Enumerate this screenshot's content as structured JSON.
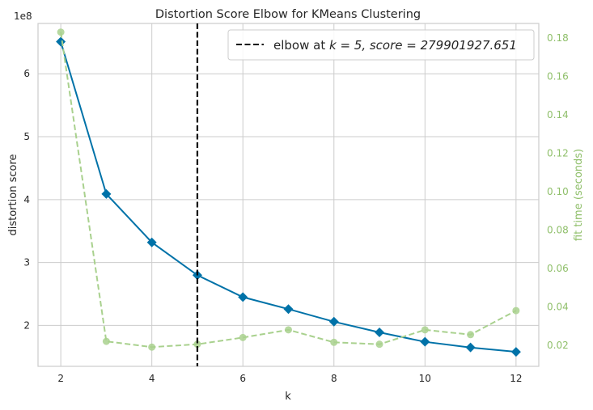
{
  "chart_data": {
    "type": "line",
    "title": "Distortion Score Elbow for KMeans Clustering",
    "xlabel": "k",
    "ylabel": "distortion score",
    "y2label": "fit time (seconds)",
    "offset_text": "1e8",
    "xlim": [
      1.5,
      12.5
    ],
    "ylim": [
      135000000.0,
      680000000.0
    ],
    "y2lim": [
      0.009,
      0.1875
    ],
    "xticks": [
      "2",
      "4",
      "6",
      "8",
      "10",
      "12"
    ],
    "yticks": [
      "2",
      "3",
      "4",
      "5",
      "6"
    ],
    "y2ticks": [
      "0.02",
      "0.04",
      "0.06",
      "0.08",
      "0.10",
      "0.12",
      "0.14",
      "0.16",
      "0.18"
    ],
    "grid": true,
    "legend_position": "top-right",
    "legend_label_prefix": "elbow at ",
    "legend_label_math": "k = 5, score = 279901927.651",
    "elbow": {
      "k": 5,
      "score": 279901927.651
    },
    "series": [
      {
        "name": "distortion score",
        "axis": "left",
        "color": "#0072a8",
        "style": "solid",
        "marker": "diamond",
        "x": [
          2,
          3,
          4,
          5,
          6,
          7,
          8,
          9,
          10,
          11,
          12
        ],
        "values": [
          651000000,
          409000000,
          332000000,
          279901927.651,
          245000000,
          226000000,
          206000000,
          189000000,
          174000000,
          165000000,
          158000000
        ]
      },
      {
        "name": "fit time (seconds)",
        "axis": "right",
        "color": "#a9d18e",
        "style": "dashed",
        "marker": "circle",
        "x": [
          2,
          3,
          4,
          5,
          6,
          7,
          8,
          9,
          10,
          11,
          12
        ],
        "values": [
          0.183,
          0.022,
          0.019,
          0.0205,
          0.024,
          0.028,
          0.0215,
          0.0205,
          0.028,
          0.0255,
          0.038
        ]
      }
    ],
    "colors": {
      "elbow_line": "#000000",
      "grid": "#cccccc",
      "frame": "#cccccc",
      "right_axis": "#8fbf6a"
    }
  }
}
